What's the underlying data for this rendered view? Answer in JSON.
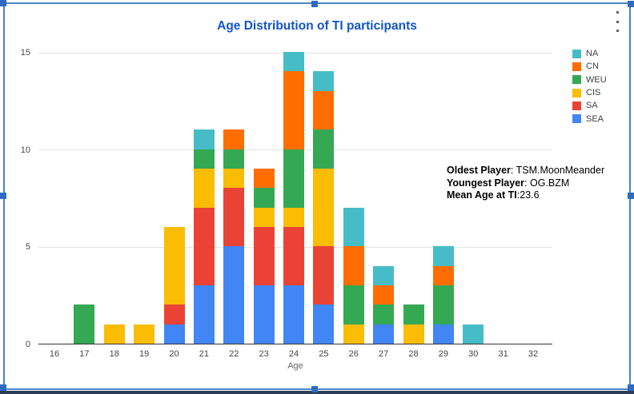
{
  "chart_data": {
    "type": "bar",
    "stacked": true,
    "title": "Age Distribution of TI participants",
    "xlabel": "Age",
    "ylabel": "",
    "ylim": [
      0,
      15
    ],
    "yticks": [
      0,
      5,
      10,
      15
    ],
    "grid": true,
    "legend_position": "right",
    "categories": [
      16,
      17,
      18,
      19,
      20,
      21,
      22,
      23,
      24,
      25,
      26,
      27,
      28,
      29,
      30,
      31,
      32
    ],
    "series": [
      {
        "name": "SEA",
        "color": "#4285f4",
        "values": [
          0,
          0,
          0,
          0,
          1,
          3,
          5,
          3,
          3,
          2,
          0,
          1,
          0,
          1,
          0,
          0,
          0
        ]
      },
      {
        "name": "SA",
        "color": "#ea4335",
        "values": [
          0,
          0,
          0,
          0,
          1,
          4,
          3,
          3,
          3,
          3,
          0,
          0,
          0,
          0,
          0,
          0,
          0
        ]
      },
      {
        "name": "CIS",
        "color": "#fbbc04",
        "values": [
          0,
          0,
          1,
          1,
          4,
          2,
          1,
          1,
          1,
          4,
          1,
          0,
          1,
          0,
          0,
          0,
          0
        ]
      },
      {
        "name": "WEU",
        "color": "#34a853",
        "values": [
          0,
          2,
          0,
          0,
          0,
          1,
          1,
          1,
          3,
          2,
          2,
          1,
          1,
          2,
          0,
          0,
          0
        ]
      },
      {
        "name": "CN",
        "color": "#ff6d01",
        "values": [
          0,
          0,
          0,
          0,
          0,
          0,
          1,
          1,
          4,
          2,
          2,
          1,
          0,
          1,
          0,
          0,
          0
        ]
      },
      {
        "name": "NA",
        "color": "#46bdc6",
        "values": [
          0,
          0,
          0,
          0,
          0,
          1,
          0,
          0,
          1,
          1,
          2,
          1,
          0,
          1,
          1,
          0,
          0
        ]
      }
    ],
    "legend_order": [
      "NA",
      "CN",
      "WEU",
      "CIS",
      "SA",
      "SEA"
    ]
  },
  "annotation": {
    "lines": [
      {
        "label": "Oldest Player",
        "sep": ": ",
        "value": "TSM.MoonMeander"
      },
      {
        "label": "Youngest Player",
        "sep": ": ",
        "value": "OG.BZM"
      },
      {
        "label": "Mean Age at TI",
        "sep": ":",
        "value": "23.6"
      }
    ]
  },
  "window": {
    "menu_icon": "kebab-menu"
  },
  "colors": {
    "title": "#1155cc",
    "axis_text": "#444444",
    "grid": "#e3e3e3",
    "axis_line": "#333333",
    "selection_border": "#4d82c6",
    "selection_handle": "#2d6cc0"
  }
}
